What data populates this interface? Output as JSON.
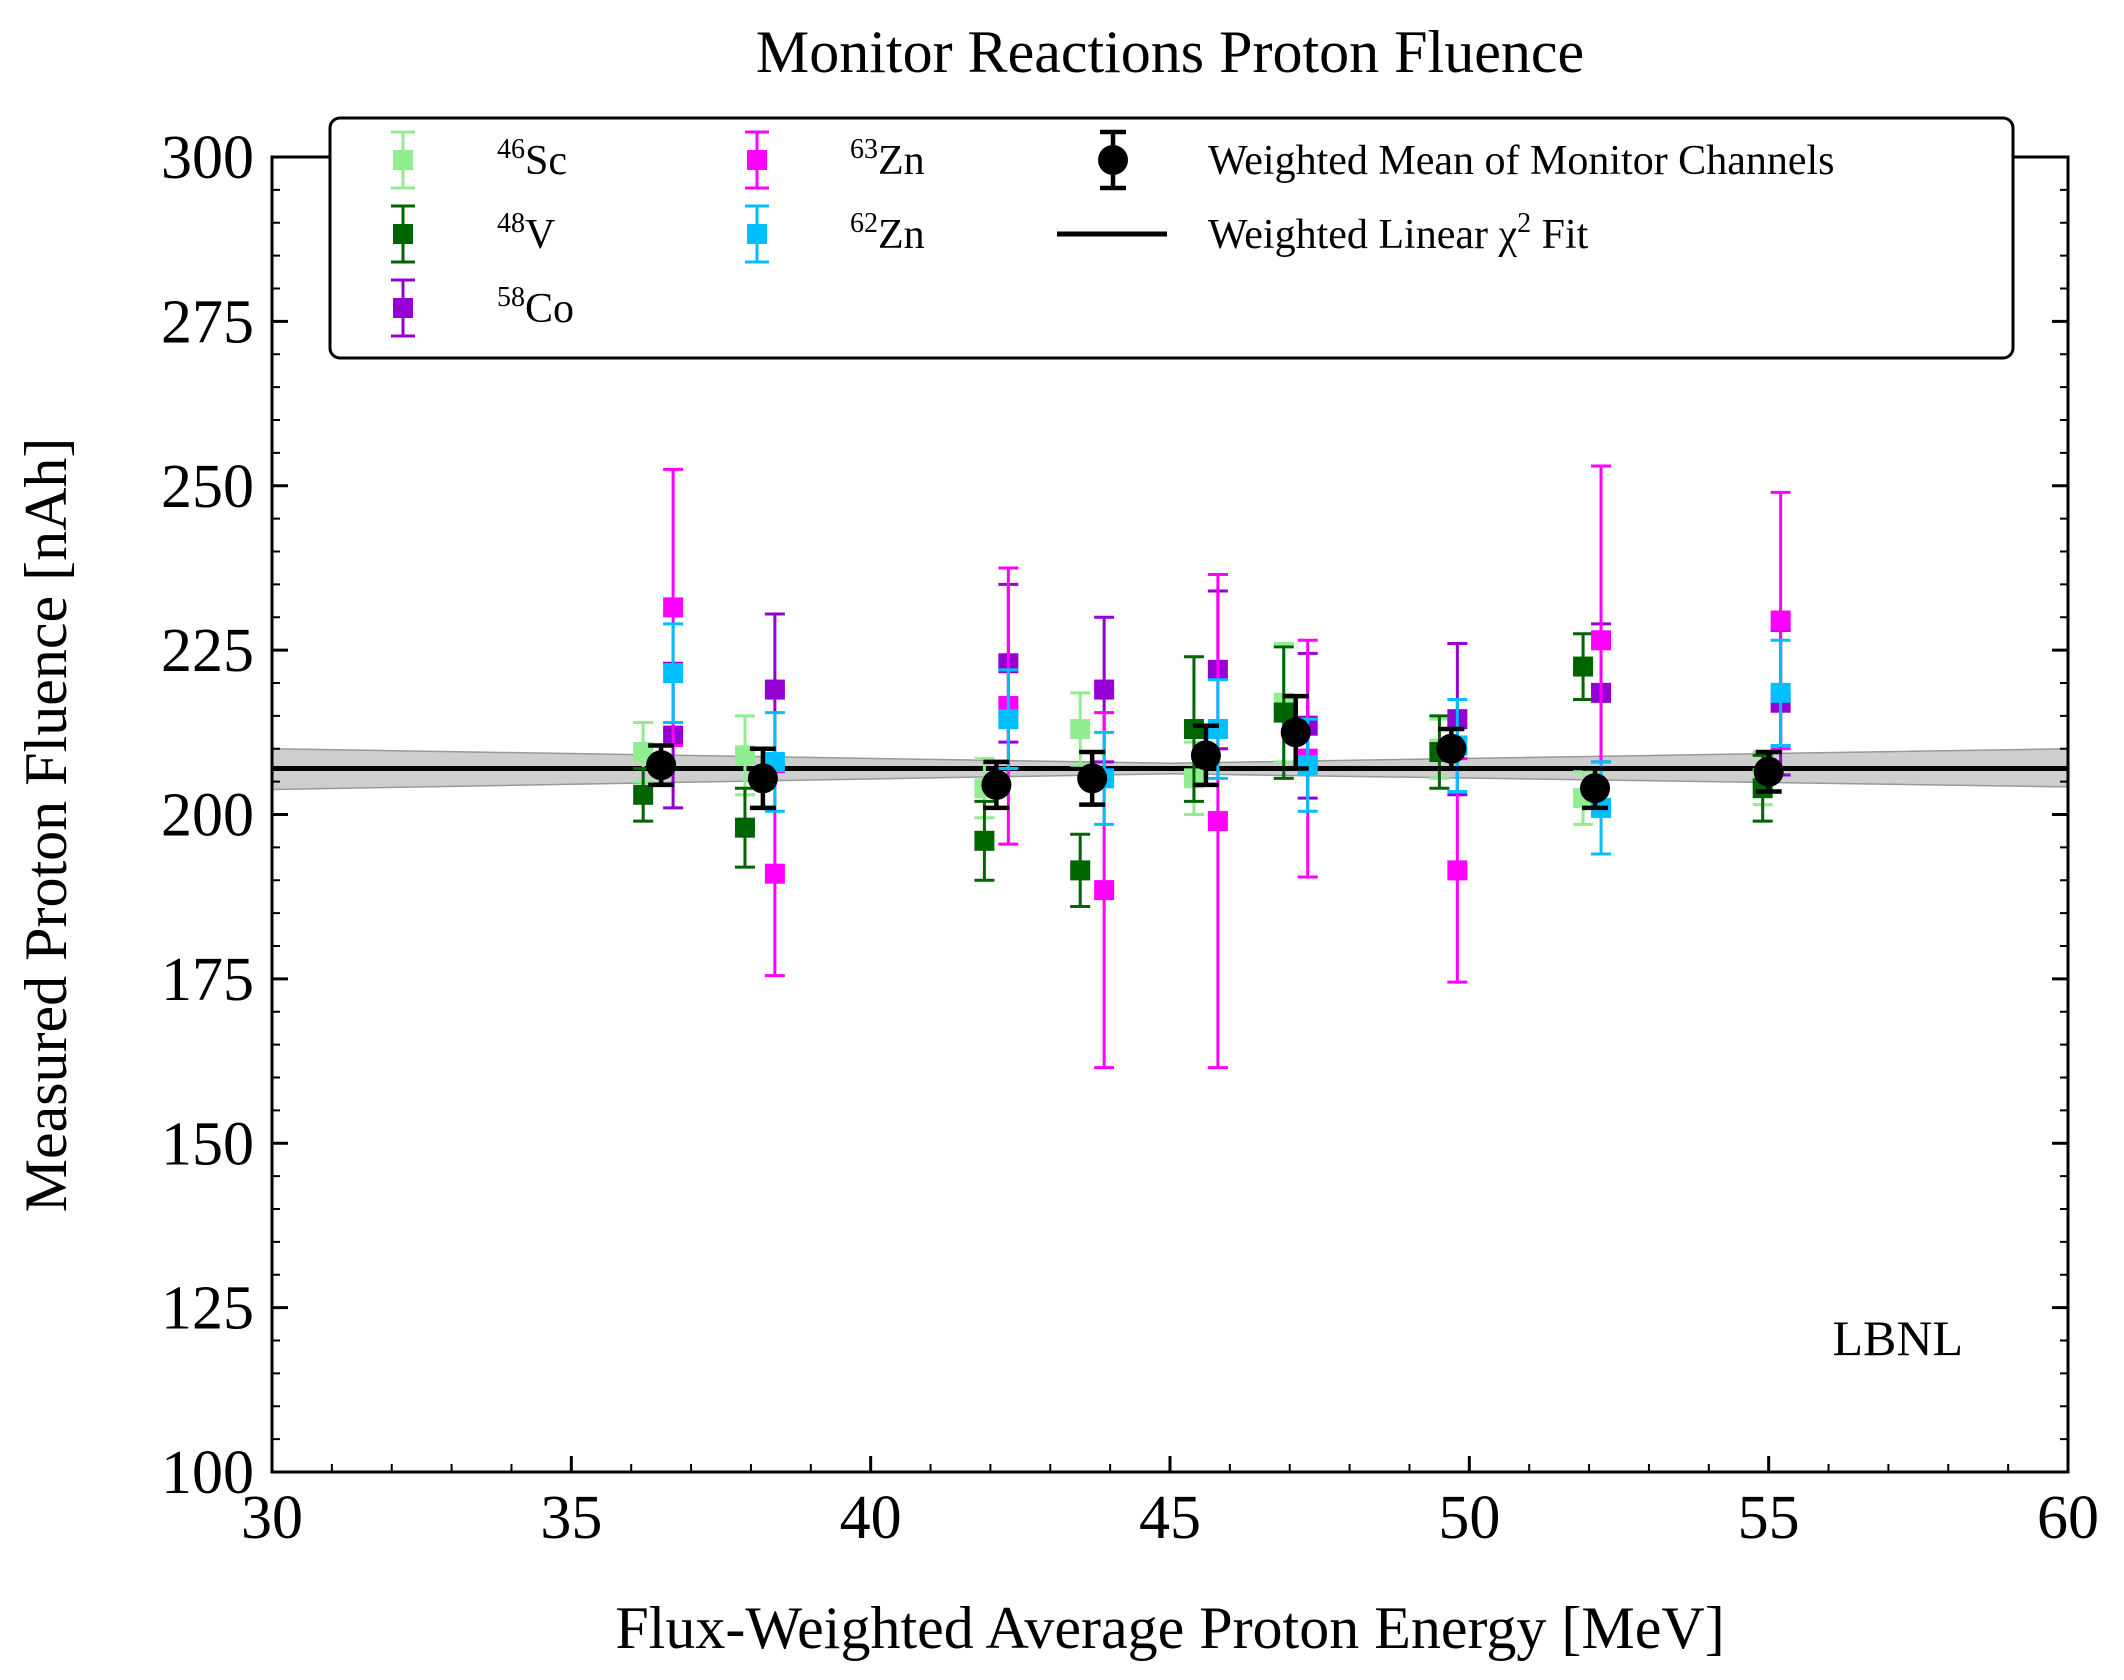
{
  "chart_data": {
    "type": "scatter",
    "title": "Monitor Reactions Proton Fluence",
    "xlabel": "Flux-Weighted Average Proton Energy [MeV]",
    "ylabel": "Measured Proton Fluence [nAh]",
    "xlim": [
      30,
      60
    ],
    "ylim": [
      100,
      300
    ],
    "x_ticks": [
      "30",
      "35",
      "40",
      "45",
      "50",
      "55",
      "60"
    ],
    "y_ticks": [
      "100",
      "125",
      "150",
      "175",
      "200",
      "225",
      "250",
      "275",
      "300"
    ],
    "annotation": "LBNL",
    "legend_position": "top",
    "series": [
      {
        "name": "46Sc",
        "sup": "46",
        "base": "Sc",
        "color": "#90ee90",
        "marker": "square",
        "points": [
          {
            "x": 36.2,
            "y": 209.5,
            "err": 4.5
          },
          {
            "x": 37.9,
            "y": 209.0,
            "err": 6.0
          },
          {
            "x": 41.9,
            "y": 204.0,
            "err": 4.5
          },
          {
            "x": 43.5,
            "y": 213.0,
            "err": 5.5
          },
          {
            "x": 45.4,
            "y": 205.5,
            "err": 5.5
          },
          {
            "x": 46.9,
            "y": 217.0,
            "err": 9.0
          },
          {
            "x": 49.5,
            "y": 210.0,
            "err": 4.5
          },
          {
            "x": 51.9,
            "y": 202.5,
            "err": 4.0
          },
          {
            "x": 54.9,
            "y": 205.5,
            "err": 4.0
          }
        ]
      },
      {
        "name": "48V",
        "sup": "48",
        "base": "V",
        "color": "#006400",
        "marker": "square",
        "points": [
          {
            "x": 36.2,
            "y": 203.0,
            "err": 4.0
          },
          {
            "x": 37.9,
            "y": 198.0,
            "err": 6.0
          },
          {
            "x": 41.9,
            "y": 196.0,
            "err": 6.0
          },
          {
            "x": 43.5,
            "y": 191.5,
            "err": 5.5
          },
          {
            "x": 45.4,
            "y": 213.0,
            "err": 11.0
          },
          {
            "x": 46.9,
            "y": 215.5,
            "err": 10.0
          },
          {
            "x": 49.5,
            "y": 209.5,
            "err": 5.5
          },
          {
            "x": 51.9,
            "y": 222.5,
            "err": 5.0
          },
          {
            "x": 54.9,
            "y": 204.0,
            "err": 5.0
          }
        ]
      },
      {
        "name": "58Co",
        "sup": "58",
        "base": "Co",
        "color": "#9400d3",
        "marker": "square",
        "points": [
          {
            "x": 36.7,
            "y": 212.0,
            "err": 11.0
          },
          {
            "x": 38.4,
            "y": 219.0,
            "err": 11.5
          },
          {
            "x": 42.3,
            "y": 223.0,
            "err": 12.0
          },
          {
            "x": 43.9,
            "y": 219.0,
            "err": 11.0
          },
          {
            "x": 45.8,
            "y": 222.0,
            "err": 12.0
          },
          {
            "x": 47.3,
            "y": 213.5,
            "err": 11.0
          },
          {
            "x": 49.8,
            "y": 214.5,
            "err": 11.5
          },
          {
            "x": 52.2,
            "y": 218.5,
            "err": 10.5
          },
          {
            "x": 55.2,
            "y": 217.0,
            "err": 11.0
          }
        ]
      },
      {
        "name": "63Zn",
        "sup": "63",
        "base": "Zn",
        "color": "#ff00ff",
        "marker": "square",
        "points": [
          {
            "x": 36.7,
            "y": 231.5,
            "err": 21.0
          },
          {
            "x": 38.4,
            "y": 191.0,
            "err": 15.5
          },
          {
            "x": 42.3,
            "y": 216.5,
            "err": 21.0
          },
          {
            "x": 43.9,
            "y": 188.5,
            "err": 27.0
          },
          {
            "x": 45.8,
            "y": 199.0,
            "err": 37.5
          },
          {
            "x": 47.3,
            "y": 208.5,
            "err": 18.0
          },
          {
            "x": 49.8,
            "y": 191.5,
            "err": 17.0
          },
          {
            "x": 52.2,
            "y": 226.5,
            "err": 26.5
          },
          {
            "x": 55.2,
            "y": 229.5,
            "err": 19.5
          }
        ]
      },
      {
        "name": "62Zn",
        "sup": "62",
        "base": "Zn",
        "color": "#00bfff",
        "marker": "square",
        "points": [
          {
            "x": 36.7,
            "y": 221.5,
            "err": 7.5
          },
          {
            "x": 38.4,
            "y": 208.0,
            "err": 7.5
          },
          {
            "x": 42.3,
            "y": 214.5,
            "err": 7.5
          },
          {
            "x": 43.9,
            "y": 205.5,
            "err": 7.0
          },
          {
            "x": 45.8,
            "y": 213.0,
            "err": 7.5
          },
          {
            "x": 47.3,
            "y": 207.5,
            "err": 7.0
          },
          {
            "x": 49.8,
            "y": 210.5,
            "err": 7.0
          },
          {
            "x": 52.2,
            "y": 201.0,
            "err": 7.0
          },
          {
            "x": 55.2,
            "y": 218.5,
            "err": 8.0
          }
        ]
      },
      {
        "name": "Weighted Mean of Monitor Channels",
        "color": "#000000",
        "marker": "circle",
        "points": [
          {
            "x": 36.5,
            "y": 207.5,
            "err": 3.0
          },
          {
            "x": 38.2,
            "y": 205.5,
            "err": 4.5
          },
          {
            "x": 42.1,
            "y": 204.5,
            "err": 3.5
          },
          {
            "x": 43.7,
            "y": 205.5,
            "err": 4.0
          },
          {
            "x": 45.6,
            "y": 209.0,
            "err": 4.5
          },
          {
            "x": 47.1,
            "y": 212.5,
            "err": 5.5
          },
          {
            "x": 49.7,
            "y": 210.0,
            "err": 3.0
          },
          {
            "x": 52.1,
            "y": 204.0,
            "err": 3.0
          },
          {
            "x": 55.0,
            "y": 206.5,
            "err": 3.0
          }
        ]
      }
    ],
    "fit": {
      "name": "Weighted Linear χ2 Fit",
      "label_main": "Weighted Linear χ",
      "label_sup": "2",
      "label_tail": " Fit",
      "x": [
        30,
        60
      ],
      "y": [
        207.0,
        207.0
      ],
      "band_upper": [
        210.0,
        210.0
      ],
      "band_lower": [
        203.8,
        204.2
      ],
      "band_center_upper": [
        207.8,
        207.8
      ],
      "band_center_lower": [
        206.2,
        206.2
      ],
      "color": "#000000",
      "band_color": "#bdbdbd"
    }
  }
}
